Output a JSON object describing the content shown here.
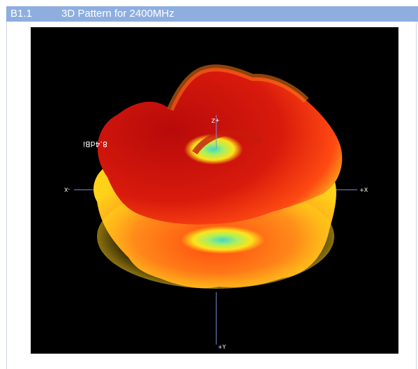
{
  "section": {
    "number": "B1.1",
    "title": "3D Pattern for 2400MHz"
  },
  "pattern": {
    "gain_label": "8.4dBi",
    "axes": {
      "z_label": "+Z",
      "x_pos_label": "+X",
      "x_neg_label": "-X",
      "y_label": "+Y"
    },
    "colors": {
      "background": "#000000",
      "axis": "#7f8fd8",
      "peak": "#c80d0a",
      "high": "#ff3a10",
      "mid": "#ff9a1a",
      "low": "#ffe21a",
      "null": "#40d8c8"
    }
  }
}
